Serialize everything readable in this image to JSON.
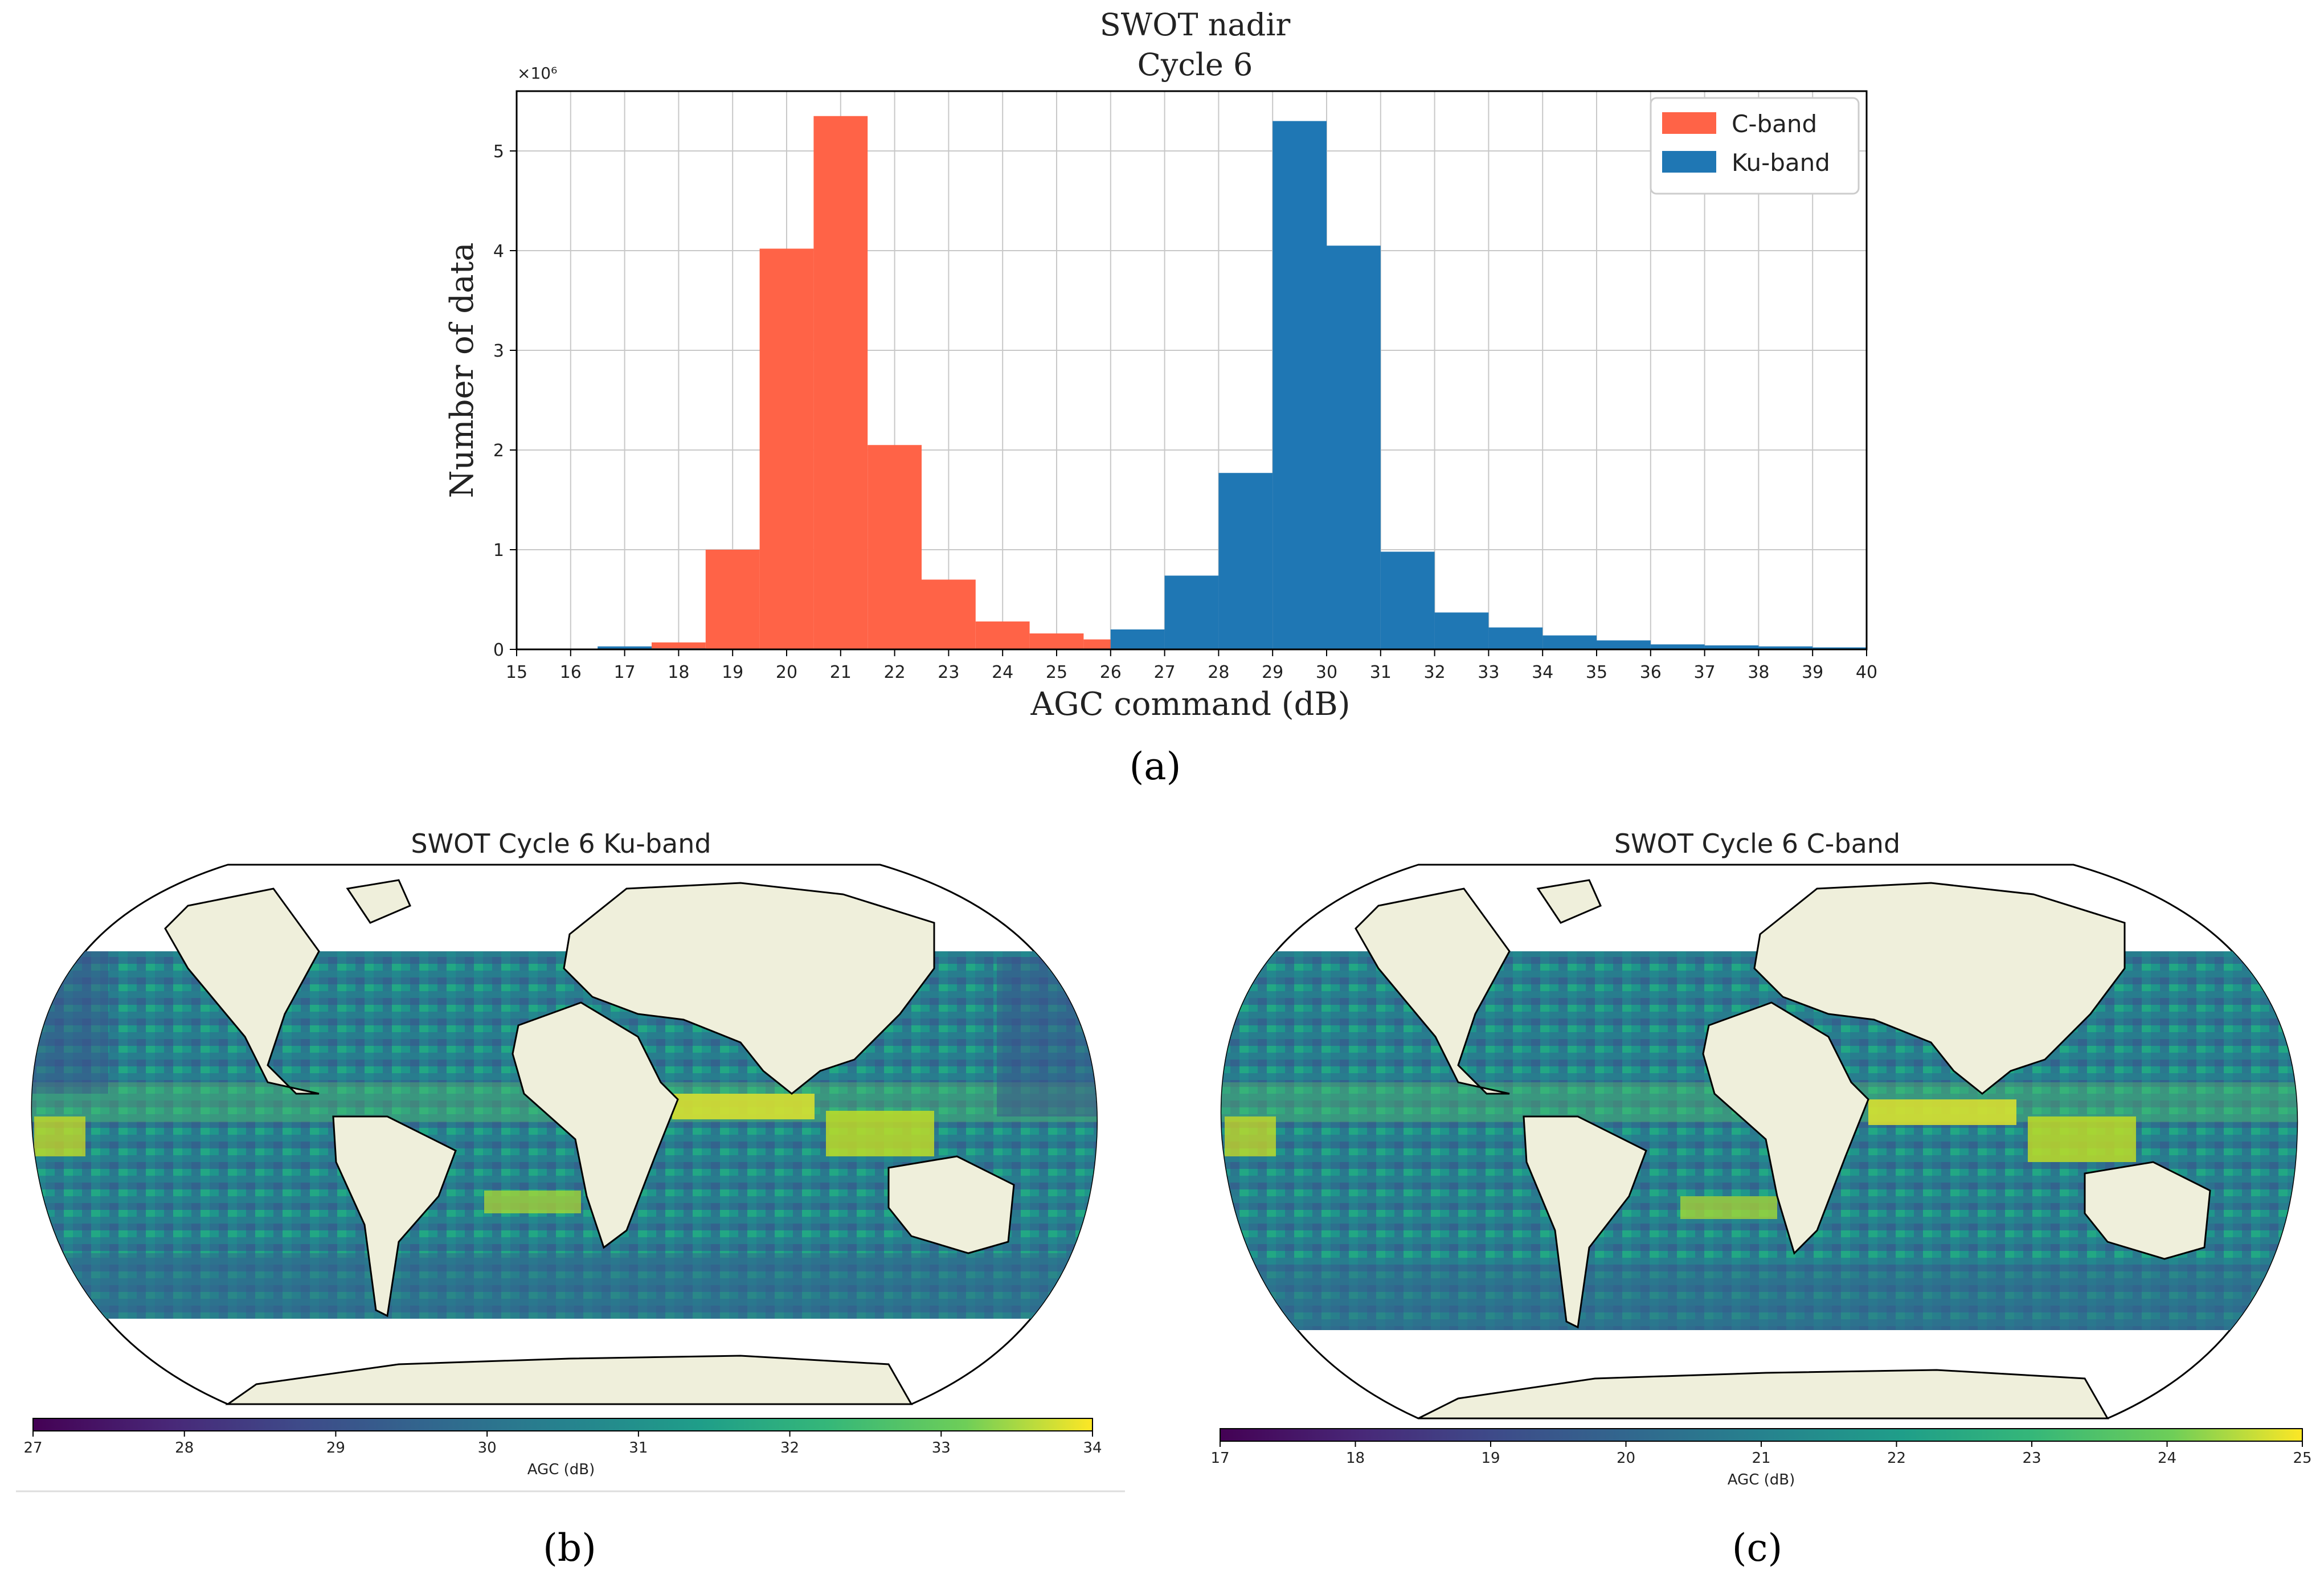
{
  "chart_data": [
    {
      "id": "a",
      "type": "bar",
      "panel_label": "(a)",
      "title": "SWOT nadir",
      "subtitle": "Cycle 6",
      "xlabel": "AGC command (dB)",
      "ylabel": "Number of data",
      "y_multiplier": "×10⁶",
      "xlim": [
        15,
        40
      ],
      "ylim": [
        0,
        5.6
      ],
      "xticks": [
        15,
        16,
        17,
        18,
        19,
        20,
        21,
        22,
        23,
        24,
        25,
        26,
        27,
        28,
        29,
        30,
        31,
        32,
        33,
        34,
        35,
        36,
        37,
        38,
        39,
        40
      ],
      "yticks": [
        0,
        1,
        2,
        3,
        4,
        5
      ],
      "grid": true,
      "legend_position": "top-right",
      "bin_width": 1,
      "series": [
        {
          "name": "C-band",
          "color": "#ff6347",
          "bin_starts": [
            16.5,
            17.5,
            18.5,
            19.5,
            20.5,
            21.5,
            22.5,
            23.5,
            24.5,
            25.5
          ],
          "values": [
            0.01,
            0.07,
            1.0,
            4.02,
            5.35,
            2.05,
            0.7,
            0.28,
            0.16,
            0.1
          ]
        },
        {
          "name": "Ku-band",
          "color": "#1f77b4",
          "bin_starts": [
            16.5,
            17.5,
            26.0,
            27.0,
            28.0,
            29.0,
            30.0,
            31.0,
            32.0,
            33.0,
            34.0,
            35.0,
            36.0,
            37.0,
            38.0,
            39.0
          ],
          "values": [
            0.03,
            0.01,
            0.2,
            0.74,
            1.77,
            5.3,
            4.05,
            0.98,
            0.37,
            0.22,
            0.14,
            0.09,
            0.05,
            0.04,
            0.03,
            0.02
          ]
        }
      ]
    },
    {
      "id": "b",
      "type": "heatmap",
      "panel_label": "(b)",
      "title": "SWOT Cycle 6 Ku-band",
      "projection": "Robinson world map",
      "colorbar_label": "AGC (dB)",
      "colorbar_range": [
        27,
        34
      ],
      "colorbar_ticks": [
        27,
        28,
        29,
        30,
        31,
        32,
        33,
        34
      ],
      "colormap": "viridis"
    },
    {
      "id": "c",
      "type": "heatmap",
      "panel_label": "(c)",
      "title": "SWOT Cycle 6 C-band",
      "projection": "Robinson world map",
      "colorbar_label": "AGC (dB)",
      "colorbar_range": [
        17,
        25
      ],
      "colorbar_ticks": [
        17,
        18,
        19,
        20,
        21,
        22,
        23,
        24,
        25
      ],
      "colormap": "viridis"
    }
  ]
}
